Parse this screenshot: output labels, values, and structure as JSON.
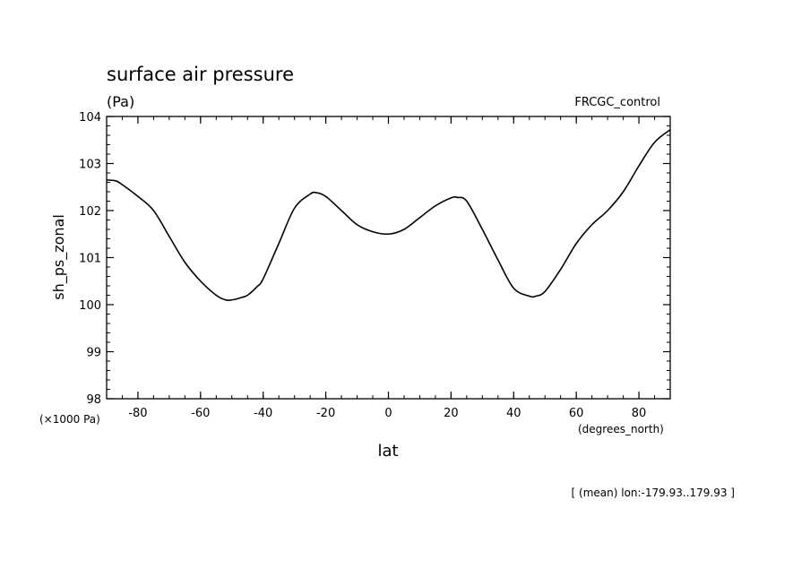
{
  "chart_data": {
    "type": "line",
    "title": "surface air pressure",
    "units_label": "(Pa)",
    "dataset_label": "FRCGC_control",
    "ylabel": "sh_ps_zonal",
    "xlabel": "lat",
    "x_units_label": "(degrees_north)",
    "y_scale_label": "(×1000 Pa)",
    "footnote": "[ (mean) lon:-179.93..179.93 ]",
    "xlim": [
      -90,
      90
    ],
    "ylim": [
      98,
      104
    ],
    "x_ticks": [
      -80,
      -60,
      -40,
      -20,
      0,
      20,
      40,
      60,
      80
    ],
    "x_tick_labels": [
      "-80",
      "-60",
      "-40",
      "-20",
      "0",
      "20",
      "40",
      "60",
      "80"
    ],
    "y_ticks": [
      98,
      99,
      100,
      101,
      102,
      103,
      104
    ],
    "y_tick_labels": [
      "98",
      "99",
      "100",
      "101",
      "102",
      "103",
      "104"
    ],
    "grid": false,
    "series": [
      {
        "x": [
          -90,
          -87,
          -85,
          -80,
          -75,
          -70,
          -65,
          -60,
          -55,
          -52,
          -50,
          -47,
          -45,
          -42,
          -40,
          -35,
          -30,
          -25,
          -23,
          -20,
          -15,
          -10,
          -5,
          0,
          5,
          10,
          15,
          20,
          22,
          25,
          30,
          35,
          40,
          45,
          47,
          50,
          55,
          60,
          65,
          70,
          75,
          80,
          85,
          90
        ],
        "y": [
          102.65,
          102.63,
          102.55,
          102.3,
          102.0,
          101.45,
          100.9,
          100.5,
          100.2,
          100.1,
          100.1,
          100.15,
          100.2,
          100.38,
          100.55,
          101.3,
          102.05,
          102.35,
          102.38,
          102.3,
          102.0,
          101.7,
          101.55,
          101.5,
          101.6,
          101.85,
          102.1,
          102.27,
          102.28,
          102.2,
          101.6,
          100.95,
          100.35,
          100.18,
          100.18,
          100.28,
          100.75,
          101.3,
          101.7,
          102.0,
          102.4,
          102.95,
          103.45,
          103.72
        ]
      }
    ]
  }
}
